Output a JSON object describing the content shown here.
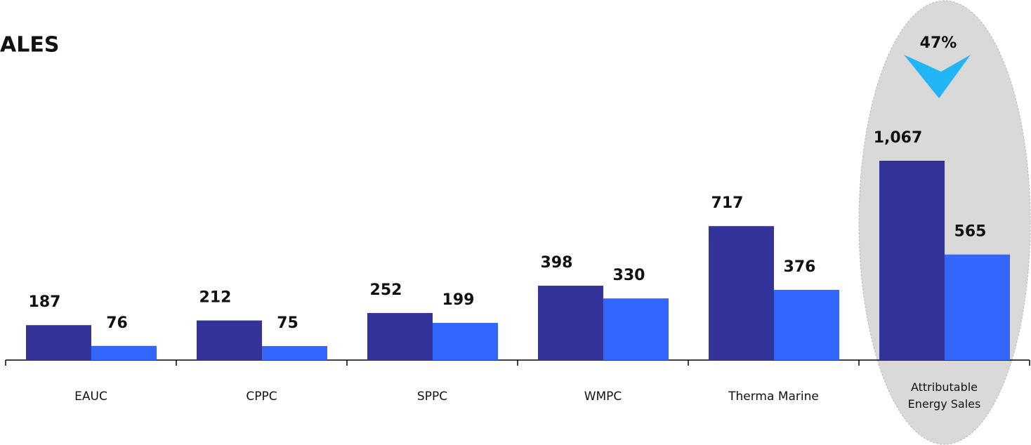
{
  "chart_data": {
    "type": "bar",
    "title": "ALES",
    "categories": [
      "EAUC",
      "CPPC",
      "SPPC",
      "WMPC",
      "Therma Marine",
      "Attributable Energy Sales"
    ],
    "series": [
      {
        "color": "#333399",
        "values": [
          187,
          212,
          252,
          398,
          717,
          1067
        ],
        "value_labels": [
          "187",
          "212",
          "252",
          "398",
          "717",
          "1,067"
        ]
      },
      {
        "color": "#3366ff",
        "values": [
          76,
          75,
          199,
          330,
          376,
          565
        ]
      }
    ],
    "annotations": [
      "47%"
    ]
  }
}
